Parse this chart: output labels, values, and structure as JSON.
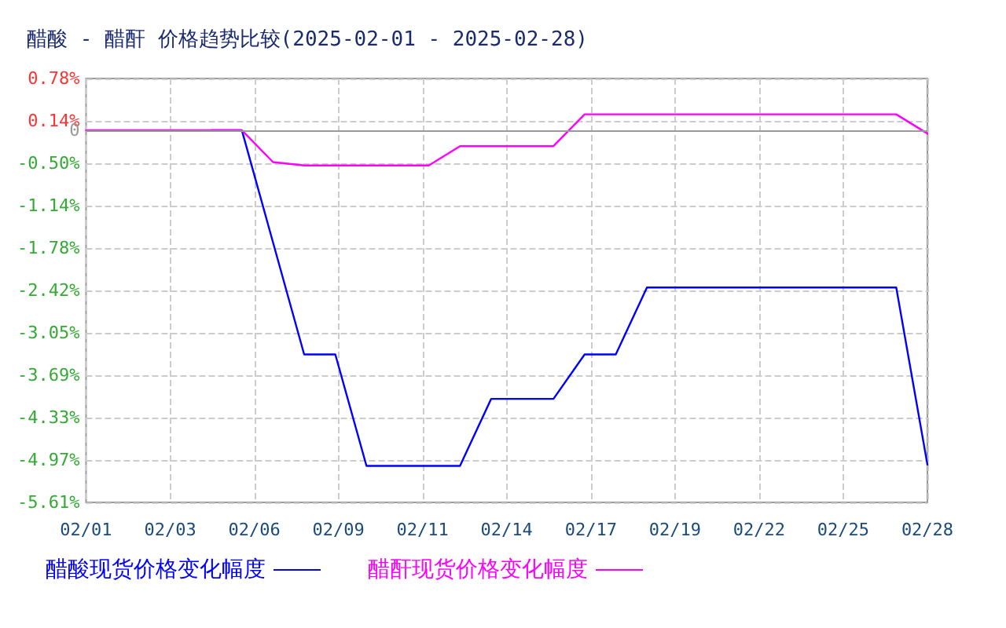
{
  "chart_data": {
    "type": "line",
    "title": "醋酸 - 醋酐 价格趋势比较(2025-02-01 - 2025-02-28)",
    "x": [
      "2025-02-01",
      "2025-02-02",
      "2025-02-03",
      "2025-02-04",
      "2025-02-05",
      "2025-02-06",
      "2025-02-07",
      "2025-02-08",
      "2025-02-09",
      "2025-02-10",
      "2025-02-11",
      "2025-02-12",
      "2025-02-13",
      "2025-02-14",
      "2025-02-15",
      "2025-02-16",
      "2025-02-17",
      "2025-02-18",
      "2025-02-19",
      "2025-02-20",
      "2025-02-21",
      "2025-02-22",
      "2025-02-23",
      "2025-02-24",
      "2025-02-25",
      "2025-02-26",
      "2025-02-27",
      "2025-02-28"
    ],
    "series": [
      {
        "name": "醋酸现货价格变化幅度",
        "color": "#0000ff",
        "values": [
          null,
          null,
          null,
          null,
          0,
          0,
          -1.69,
          -3.38,
          -3.38,
          -5.06,
          -5.06,
          -5.06,
          -5.06,
          -4.05,
          -4.05,
          -4.05,
          -3.38,
          -3.38,
          -2.37,
          -2.37,
          -2.37,
          -2.37,
          -2.37,
          -2.37,
          -2.37,
          -2.37,
          -2.37,
          -5.04
        ]
      },
      {
        "name": "醋酐现货价格变化幅度",
        "color": "#ff00ff",
        "values": [
          0,
          0,
          0,
          0,
          0,
          0,
          -0.48,
          -0.53,
          -0.53,
          -0.53,
          -0.53,
          -0.53,
          -0.24,
          -0.24,
          -0.24,
          -0.24,
          0.24,
          0.24,
          0.24,
          0.24,
          0.24,
          0.24,
          0.24,
          0.24,
          0.24,
          0.24,
          0.24,
          -0.05
        ]
      }
    ],
    "xlim": [
      "2025-02-01",
      "2025-02-28"
    ],
    "xticks": [
      {
        "value": "2025-02-01",
        "label": "02/01"
      },
      {
        "value": "2025-02-03T16:48",
        "label": "02/03"
      },
      {
        "value": "2025-02-06T09:36",
        "label": "02/06"
      },
      {
        "value": "2025-02-09T02:24",
        "label": "02/09"
      },
      {
        "value": "2025-02-11T19:12",
        "label": "02/11"
      },
      {
        "value": "2025-02-14T12:00",
        "label": "02/14"
      },
      {
        "value": "2025-02-17T04:48",
        "label": "02/17"
      },
      {
        "value": "2025-02-19T21:36",
        "label": "02/19"
      },
      {
        "value": "2025-02-22T14:24",
        "label": "02/22"
      },
      {
        "value": "2025-02-25T07:12",
        "label": "02/25"
      },
      {
        "value": "2025-02-28",
        "label": "02/28"
      }
    ],
    "ylim": [
      -5.61,
      0.78
    ],
    "yticks": [
      {
        "value": 0.78,
        "label": "0.78%"
      },
      {
        "value": 0.14,
        "label": "0.14%"
      },
      {
        "value": 0,
        "label": "0"
      },
      {
        "value": -0.5,
        "label": "-0.50%"
      },
      {
        "value": -1.14,
        "label": "-1.14%"
      },
      {
        "value": -1.78,
        "label": "-1.78%"
      },
      {
        "value": -2.42,
        "label": "-2.42%"
      },
      {
        "value": -3.05,
        "label": "-3.05%"
      },
      {
        "value": -3.69,
        "label": "-3.69%"
      },
      {
        "value": -4.33,
        "label": "-4.33%"
      },
      {
        "value": -4.97,
        "label": "-4.97%"
      },
      {
        "value": -5.61,
        "label": "-5.61%"
      }
    ],
    "ref_lines": [
      {
        "axis": "y",
        "value": 0,
        "color": "#999999"
      }
    ],
    "grid": true,
    "legend": "bottom left",
    "marker": "none",
    "line_style": "solid"
  }
}
